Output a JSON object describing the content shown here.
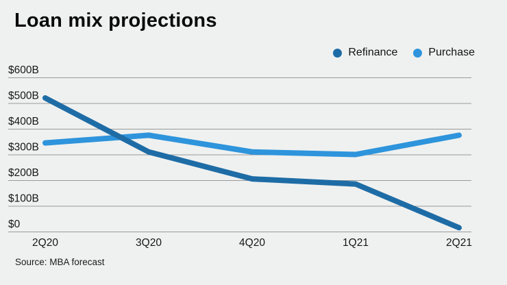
{
  "header": {
    "title": "Loan mix projections"
  },
  "legend": {
    "items": [
      {
        "label": "Refinance",
        "color": "#1e6ca6"
      },
      {
        "label": "Purchase",
        "color": "#2e94dc"
      }
    ]
  },
  "footer": {
    "source": "Source: MBA forecast"
  },
  "colors": {
    "background": "#eff1f0",
    "gridline": "#97999b",
    "axis_text": "#161616",
    "title_text": "#0b0b0b"
  },
  "chart_data": {
    "type": "line",
    "title": "Loan mix projections",
    "categories": [
      "2Q20",
      "3Q20",
      "4Q20",
      "1Q21",
      "2Q21"
    ],
    "series": [
      {
        "name": "Refinance",
        "color": "#1e6ca6",
        "values": [
          520,
          310,
          205,
          185,
          15
        ]
      },
      {
        "name": "Purchase",
        "color": "#2e94dc",
        "values": [
          345,
          375,
          310,
          300,
          375
        ]
      }
    ],
    "xlabel": "",
    "ylabel": "",
    "ylim": [
      0,
      600
    ],
    "ytick_step": 100,
    "ytick_labels": [
      "$0",
      "$100B",
      "$200B",
      "$300B",
      "$400B",
      "$500B",
      "$600B"
    ],
    "grid": true,
    "legend_position": "top-right",
    "source": "Source: MBA forecast"
  }
}
